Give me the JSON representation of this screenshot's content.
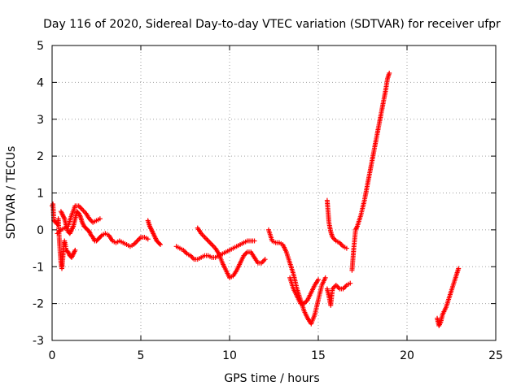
{
  "chart_data": {
    "type": "scatter",
    "title": "Day 116 of 2020, Sidereal Day-to-day VTEC variation (SDTVAR) for receiver ufpr",
    "xlabel": "GPS time / hours",
    "ylabel": "SDTVAR / TECUs",
    "xlim": [
      0,
      25
    ],
    "ylim": [
      -3,
      5
    ],
    "xticks": [
      0,
      5,
      10,
      15,
      20,
      25
    ],
    "yticks": [
      -3,
      -2,
      -1,
      0,
      1,
      2,
      3,
      4,
      5
    ],
    "grid": true,
    "marker": "+",
    "color": "#ff0000",
    "series": [
      {
        "name": "SDTVAR",
        "segments": [
          [
            [
              0.0,
              0.65
            ],
            [
              0.05,
              0.7
            ],
            [
              0.1,
              0.25
            ],
            [
              0.2,
              0.2
            ],
            [
              0.3,
              0.15
            ],
            [
              0.35,
              0.3
            ],
            [
              0.4,
              -0.2
            ],
            [
              0.45,
              -0.6
            ],
            [
              0.5,
              -0.9
            ],
            [
              0.55,
              -1.05
            ],
            [
              0.6,
              -0.8
            ],
            [
              0.65,
              -0.5
            ],
            [
              0.7,
              -0.3
            ],
            [
              0.75,
              -0.4
            ],
            [
              0.8,
              -0.55
            ],
            [
              0.9,
              -0.6
            ],
            [
              1.0,
              -0.7
            ],
            [
              1.1,
              -0.75
            ],
            [
              1.2,
              -0.65
            ],
            [
              1.3,
              -0.55
            ]
          ],
          [
            [
              0.5,
              0.5
            ],
            [
              0.6,
              0.4
            ],
            [
              0.7,
              0.3
            ],
            [
              0.8,
              0.1
            ],
            [
              0.9,
              -0.05
            ],
            [
              1.0,
              -0.1
            ],
            [
              1.1,
              0.0
            ],
            [
              1.2,
              0.1
            ],
            [
              1.3,
              0.3
            ],
            [
              1.4,
              0.5
            ],
            [
              1.5,
              0.45
            ],
            [
              1.6,
              0.35
            ],
            [
              1.7,
              0.2
            ],
            [
              1.8,
              0.1
            ],
            [
              1.9,
              0.05
            ],
            [
              2.0,
              0.0
            ],
            [
              2.1,
              -0.05
            ],
            [
              2.2,
              -0.15
            ],
            [
              2.3,
              -0.2
            ],
            [
              2.4,
              -0.3
            ],
            [
              2.5,
              -0.3
            ],
            [
              2.6,
              -0.25
            ],
            [
              2.7,
              -0.2
            ],
            [
              2.8,
              -0.15
            ],
            [
              3.0,
              -0.1
            ],
            [
              3.2,
              -0.15
            ],
            [
              3.4,
              -0.3
            ],
            [
              3.6,
              -0.35
            ],
            [
              3.8,
              -0.3
            ],
            [
              4.0,
              -0.35
            ],
            [
              4.2,
              -0.4
            ],
            [
              4.4,
              -0.45
            ],
            [
              4.6,
              -0.4
            ],
            [
              4.8,
              -0.3
            ],
            [
              5.0,
              -0.2
            ],
            [
              5.2,
              -0.2
            ],
            [
              5.4,
              -0.25
            ]
          ],
          [
            [
              0.3,
              -0.1
            ],
            [
              0.5,
              0.0
            ],
            [
              0.7,
              0.05
            ],
            [
              0.9,
              0.1
            ],
            [
              1.1,
              0.4
            ],
            [
              1.3,
              0.65
            ],
            [
              1.5,
              0.65
            ],
            [
              1.7,
              0.55
            ],
            [
              1.9,
              0.45
            ],
            [
              2.1,
              0.3
            ],
            [
              2.3,
              0.2
            ],
            [
              2.5,
              0.25
            ],
            [
              2.7,
              0.3
            ]
          ],
          [
            [
              5.4,
              0.25
            ],
            [
              5.5,
              0.1
            ],
            [
              5.6,
              0.0
            ],
            [
              5.7,
              -0.1
            ],
            [
              5.8,
              -0.2
            ],
            [
              5.9,
              -0.3
            ],
            [
              6.0,
              -0.35
            ],
            [
              6.1,
              -0.4
            ]
          ],
          [
            [
              7.0,
              -0.45
            ],
            [
              7.2,
              -0.5
            ],
            [
              7.4,
              -0.55
            ],
            [
              7.6,
              -0.65
            ],
            [
              7.8,
              -0.7
            ],
            [
              8.0,
              -0.8
            ],
            [
              8.2,
              -0.8
            ],
            [
              8.4,
              -0.75
            ],
            [
              8.6,
              -0.7
            ],
            [
              8.8,
              -0.7
            ],
            [
              9.0,
              -0.75
            ],
            [
              9.2,
              -0.75
            ],
            [
              9.4,
              -0.7
            ],
            [
              9.6,
              -0.65
            ],
            [
              9.8,
              -0.6
            ],
            [
              10.0,
              -0.55
            ],
            [
              10.2,
              -0.5
            ],
            [
              10.4,
              -0.45
            ],
            [
              10.6,
              -0.4
            ],
            [
              10.8,
              -0.35
            ],
            [
              11.0,
              -0.3
            ],
            [
              11.2,
              -0.3
            ],
            [
              11.4,
              -0.3
            ]
          ],
          [
            [
              8.2,
              0.05
            ],
            [
              8.4,
              -0.1
            ],
            [
              8.6,
              -0.2
            ],
            [
              8.8,
              -0.3
            ],
            [
              9.0,
              -0.4
            ],
            [
              9.2,
              -0.5
            ],
            [
              9.4,
              -0.65
            ],
            [
              9.6,
              -0.9
            ],
            [
              9.8,
              -1.1
            ],
            [
              10.0,
              -1.3
            ],
            [
              10.2,
              -1.25
            ],
            [
              10.4,
              -1.1
            ],
            [
              10.6,
              -0.9
            ],
            [
              10.8,
              -0.7
            ],
            [
              11.0,
              -0.6
            ],
            [
              11.2,
              -0.6
            ],
            [
              11.4,
              -0.75
            ],
            [
              11.6,
              -0.9
            ],
            [
              11.8,
              -0.9
            ],
            [
              12.0,
              -0.8
            ]
          ],
          [
            [
              12.2,
              0.0
            ],
            [
              12.4,
              -0.3
            ],
            [
              12.6,
              -0.35
            ],
            [
              12.8,
              -0.35
            ],
            [
              13.0,
              -0.4
            ],
            [
              13.2,
              -0.6
            ],
            [
              13.4,
              -0.9
            ],
            [
              13.6,
              -1.2
            ],
            [
              13.8,
              -1.6
            ],
            [
              14.0,
              -1.9
            ],
            [
              14.2,
              -2.2
            ],
            [
              14.4,
              -2.4
            ],
            [
              14.6,
              -2.55
            ],
            [
              14.8,
              -2.3
            ],
            [
              15.0,
              -1.9
            ],
            [
              15.2,
              -1.5
            ],
            [
              15.4,
              -1.3
            ]
          ],
          [
            [
              13.4,
              -1.3
            ],
            [
              13.6,
              -1.6
            ],
            [
              13.8,
              -1.8
            ],
            [
              14.0,
              -2.0
            ],
            [
              14.2,
              -2.0
            ],
            [
              14.4,
              -1.9
            ],
            [
              14.6,
              -1.7
            ],
            [
              14.8,
              -1.5
            ],
            [
              15.0,
              -1.35
            ]
          ],
          [
            [
              15.5,
              0.8
            ],
            [
              15.6,
              0.2
            ],
            [
              15.7,
              -0.05
            ],
            [
              15.8,
              -0.2
            ],
            [
              16.0,
              -0.3
            ],
            [
              16.2,
              -0.35
            ],
            [
              16.4,
              -0.45
            ],
            [
              16.6,
              -0.5
            ]
          ],
          [
            [
              15.5,
              -1.6
            ],
            [
              15.6,
              -1.8
            ],
            [
              15.7,
              -2.05
            ],
            [
              15.8,
              -1.6
            ],
            [
              16.0,
              -1.5
            ],
            [
              16.2,
              -1.6
            ],
            [
              16.4,
              -1.6
            ],
            [
              16.6,
              -1.5
            ],
            [
              16.8,
              -1.45
            ]
          ],
          [
            [
              16.9,
              -1.1
            ],
            [
              17.0,
              -0.5
            ],
            [
              17.1,
              0.0
            ],
            [
              17.2,
              0.1
            ],
            [
              17.4,
              0.4
            ],
            [
              17.6,
              0.8
            ],
            [
              17.8,
              1.3
            ],
            [
              18.0,
              1.8
            ],
            [
              18.2,
              2.3
            ],
            [
              18.4,
              2.8
            ],
            [
              18.6,
              3.3
            ],
            [
              18.8,
              3.8
            ],
            [
              18.9,
              4.1
            ],
            [
              19.0,
              4.25
            ]
          ],
          [
            [
              21.7,
              -2.4
            ],
            [
              21.8,
              -2.6
            ],
            [
              21.9,
              -2.5
            ],
            [
              22.0,
              -2.3
            ],
            [
              22.2,
              -2.1
            ],
            [
              22.4,
              -1.8
            ],
            [
              22.6,
              -1.5
            ],
            [
              22.8,
              -1.2
            ],
            [
              22.9,
              -1.05
            ]
          ]
        ]
      }
    ]
  }
}
